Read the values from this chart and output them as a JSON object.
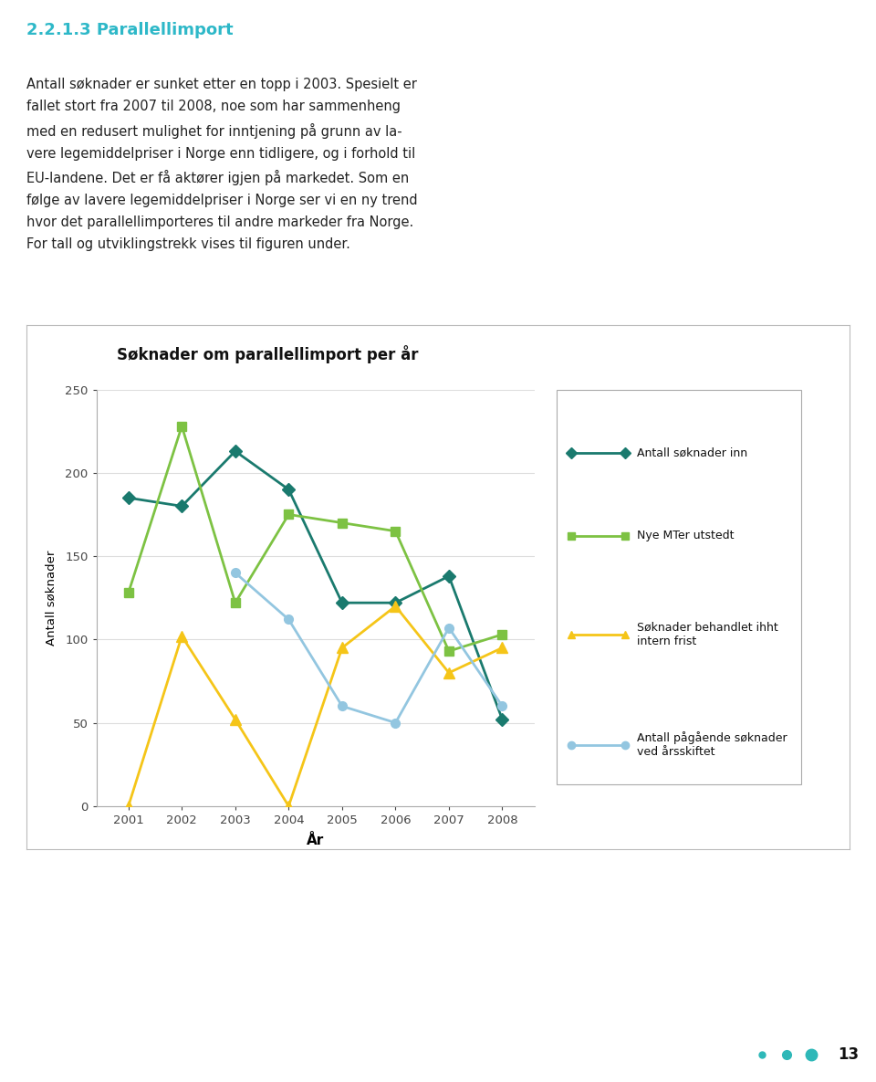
{
  "title": "Søknader om parallellimport per år",
  "xlabel": "År",
  "ylabel": "Antall søknader",
  "years": [
    2001,
    2002,
    2003,
    2004,
    2005,
    2006,
    2007,
    2008
  ],
  "series": {
    "antall_inn": [
      185,
      180,
      213,
      190,
      122,
      122,
      138,
      52
    ],
    "nye_mt": [
      128,
      228,
      122,
      175,
      170,
      165,
      93,
      103
    ],
    "behandlet": [
      0,
      102,
      52,
      0,
      95,
      120,
      80,
      95
    ],
    "pagaende": [
      null,
      null,
      140,
      112,
      60,
      50,
      107,
      60
    ]
  },
  "colors": {
    "antall_inn": "#1a7a6e",
    "nye_mt": "#7dc243",
    "behandlet": "#f5c518",
    "pagaende": "#93c6e0"
  },
  "heading_color": "#2eb8c8",
  "heading": "2.2.1.3 Parallellimport",
  "body_lines": [
    "Antall søknader er sunket etter en topp i 2003. Spesielt er fallet stort fra 2007 til 2008, noe som har sammenheng",
    "med en redusert mulighet for inntjening på grunn av la-",
    "vere legemiddelpriser i Norge enn tidligere, og i forhold til",
    "EU-landene. Det er få aktører igjen på markedet. Som en",
    "følge av lavere legemiddelpriser i Norge ser vi en ny trend",
    "hvor det parallellimporteres til andre markeder fra Norge.",
    "For tall og utviklingstrekk vises til figuren under."
  ],
  "legend_labels": [
    "Antall søknader inn",
    "Nye MTer utstedt",
    "Søknader behandlet ihht\nintern frist",
    "Antall pågående søknader\nved årsskiftet"
  ],
  "ylim": [
    0,
    250
  ],
  "yticks": [
    0,
    50,
    100,
    150,
    200,
    250
  ],
  "chart_bg": "#ffffff",
  "page_bg": "#ffffff",
  "footer_dots_color": "#2eb8b8",
  "page_number": "13"
}
